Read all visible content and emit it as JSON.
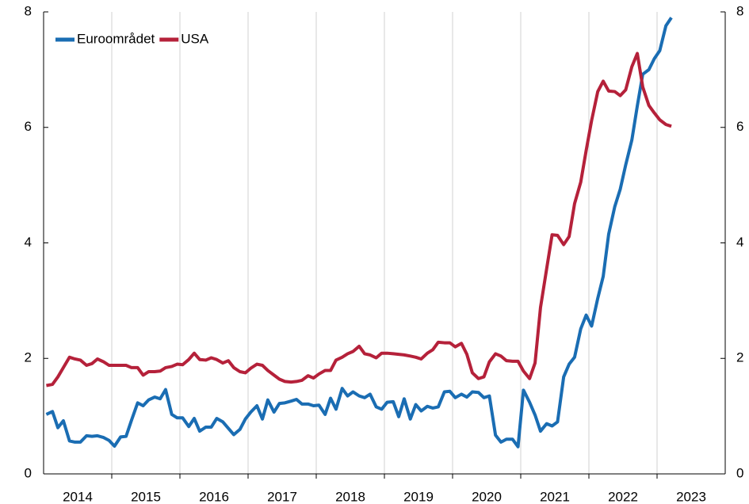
{
  "chart_data": {
    "type": "line",
    "x": [
      2014.04,
      2014.13,
      2014.21,
      2014.29,
      2014.38,
      2014.46,
      2014.54,
      2014.63,
      2014.71,
      2014.79,
      2014.88,
      2014.96,
      2015.04,
      2015.13,
      2015.21,
      2015.29,
      2015.38,
      2015.46,
      2015.54,
      2015.63,
      2015.71,
      2015.79,
      2015.88,
      2015.96,
      2016.04,
      2016.13,
      2016.21,
      2016.29,
      2016.38,
      2016.46,
      2016.54,
      2016.63,
      2016.71,
      2016.79,
      2016.88,
      2016.96,
      2017.04,
      2017.13,
      2017.21,
      2017.29,
      2017.38,
      2017.46,
      2017.54,
      2017.63,
      2017.71,
      2017.79,
      2017.88,
      2017.96,
      2018.04,
      2018.13,
      2018.21,
      2018.29,
      2018.38,
      2018.46,
      2018.54,
      2018.63,
      2018.71,
      2018.79,
      2018.88,
      2018.96,
      2019.04,
      2019.13,
      2019.21,
      2019.29,
      2019.38,
      2019.46,
      2019.54,
      2019.63,
      2019.71,
      2019.79,
      2019.88,
      2019.96,
      2020.04,
      2020.13,
      2020.21,
      2020.29,
      2020.38,
      2020.46,
      2020.54,
      2020.63,
      2020.71,
      2020.79,
      2020.88,
      2020.96,
      2021.04,
      2021.13,
      2021.21,
      2021.29,
      2021.38,
      2021.46,
      2021.54,
      2021.63,
      2021.71,
      2021.79,
      2021.88,
      2021.96,
      2022.04,
      2022.13,
      2022.21,
      2022.29,
      2022.38,
      2022.46,
      2022.54,
      2022.63,
      2022.71,
      2022.79,
      2022.88,
      2022.96,
      2023.04,
      2023.13,
      2023.21
    ],
    "series": [
      {
        "name": "Euroområdet",
        "color": "#1a6db3",
        "values": [
          1.03,
          1.08,
          0.8,
          0.92,
          0.57,
          0.55,
          0.55,
          0.66,
          0.65,
          0.66,
          0.63,
          0.58,
          0.48,
          0.64,
          0.65,
          0.93,
          1.23,
          1.18,
          1.28,
          1.33,
          1.3,
          1.46,
          1.03,
          0.97,
          0.97,
          0.82,
          0.96,
          0.74,
          0.81,
          0.81,
          0.96,
          0.9,
          0.79,
          0.68,
          0.77,
          0.95,
          1.07,
          1.18,
          0.95,
          1.28,
          1.07,
          1.22,
          1.23,
          1.26,
          1.29,
          1.21,
          1.21,
          1.18,
          1.19,
          1.03,
          1.31,
          1.12,
          1.48,
          1.35,
          1.42,
          1.35,
          1.32,
          1.38,
          1.16,
          1.12,
          1.24,
          1.25,
          0.99,
          1.3,
          0.95,
          1.2,
          1.09,
          1.17,
          1.14,
          1.16,
          1.42,
          1.43,
          1.32,
          1.38,
          1.33,
          1.42,
          1.41,
          1.32,
          1.35,
          0.67,
          0.55,
          0.6,
          0.6,
          0.47,
          1.45,
          1.24,
          1.02,
          0.74,
          0.87,
          0.83,
          0.9,
          1.68,
          1.9,
          2.02,
          2.51,
          2.75,
          2.56,
          3.04,
          3.42,
          4.15,
          4.63,
          4.93,
          5.35,
          5.78,
          6.37,
          6.92,
          7.0,
          7.19,
          7.33,
          7.76,
          7.9
        ]
      },
      {
        "name": "USA",
        "color": "#b5213a",
        "values": [
          1.53,
          1.55,
          1.68,
          1.84,
          2.02,
          1.99,
          1.97,
          1.88,
          1.91,
          1.99,
          1.94,
          1.88,
          1.88,
          1.88,
          1.88,
          1.84,
          1.84,
          1.71,
          1.77,
          1.77,
          1.78,
          1.84,
          1.86,
          1.9,
          1.89,
          1.98,
          2.09,
          1.98,
          1.97,
          2.01,
          1.98,
          1.92,
          1.96,
          1.84,
          1.77,
          1.75,
          1.83,
          1.9,
          1.88,
          1.79,
          1.71,
          1.64,
          1.6,
          1.59,
          1.6,
          1.62,
          1.7,
          1.66,
          1.73,
          1.79,
          1.79,
          1.97,
          2.02,
          2.08,
          2.12,
          2.21,
          2.08,
          2.06,
          2.01,
          2.09,
          2.09,
          2.08,
          2.07,
          2.06,
          2.04,
          2.02,
          1.99,
          2.09,
          2.15,
          2.28,
          2.27,
          2.27,
          2.2,
          2.26,
          2.07,
          1.75,
          1.65,
          1.68,
          1.94,
          2.08,
          2.04,
          1.96,
          1.95,
          1.95,
          1.78,
          1.65,
          1.92,
          2.88,
          3.55,
          4.14,
          4.13,
          3.97,
          4.11,
          4.68,
          5.05,
          5.6,
          6.12,
          6.62,
          6.8,
          6.63,
          6.62,
          6.55,
          6.65,
          7.05,
          7.28,
          6.7,
          6.38,
          6.25,
          6.13,
          6.05,
          6.02
        ]
      }
    ],
    "xlim": [
      2014,
      2024
    ],
    "xticks": [
      {
        "value": 2014.5,
        "label": "2014"
      },
      {
        "value": 2015.5,
        "label": "2015"
      },
      {
        "value": 2016.5,
        "label": "2016"
      },
      {
        "value": 2017.5,
        "label": "2017"
      },
      {
        "value": 2018.5,
        "label": "2018"
      },
      {
        "value": 2019.5,
        "label": "2019"
      },
      {
        "value": 2020.5,
        "label": "2020"
      },
      {
        "value": 2021.5,
        "label": "2021"
      },
      {
        "value": 2022.5,
        "label": "2022"
      },
      {
        "value": 2023.5,
        "label": "2023"
      }
    ],
    "xgrid": [
      2015,
      2016,
      2017,
      2018,
      2019,
      2020,
      2021,
      2022,
      2023
    ],
    "ylim": [
      0,
      8
    ],
    "yticks": [
      0,
      2,
      4,
      6,
      8
    ],
    "y2lim": [
      0,
      8
    ],
    "y2ticks": [
      0,
      2,
      4,
      6,
      8
    ],
    "grid": true,
    "legend": "upper left"
  }
}
